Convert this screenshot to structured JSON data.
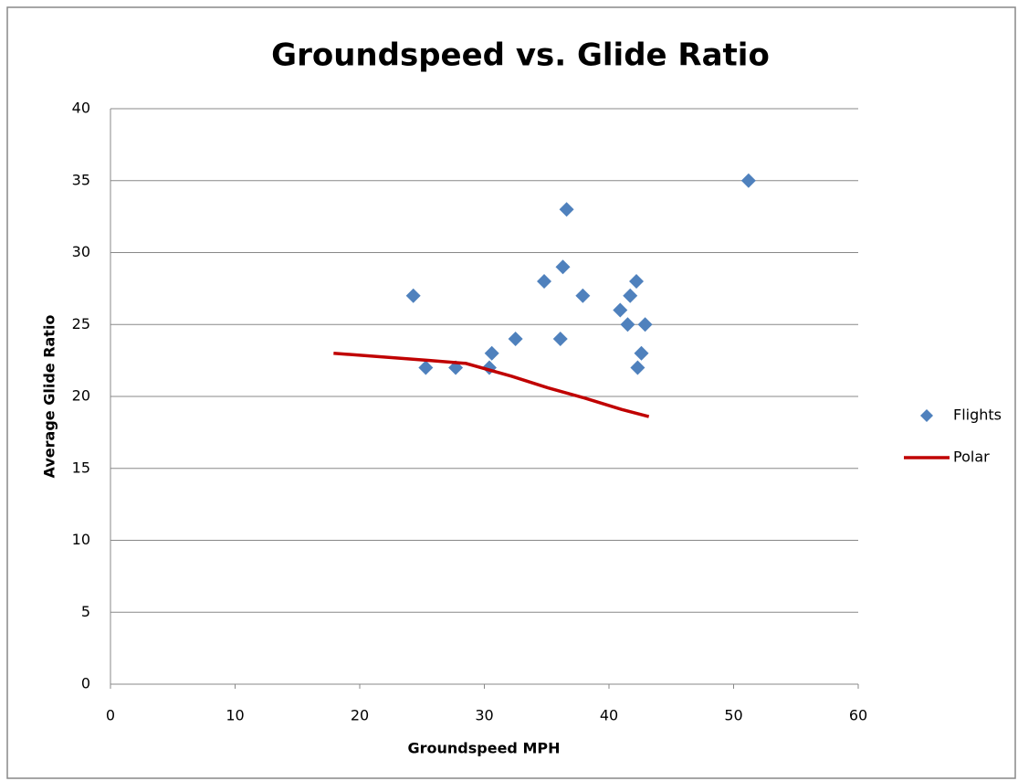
{
  "chart_data": {
    "type": "scatter",
    "title": "Groundspeed vs. Glide Ratio",
    "x_label": "Groundspeed MPH",
    "y_label": "Average Glide Ratio",
    "xlim": [
      0,
      60
    ],
    "xticks": [
      0,
      10,
      20,
      30,
      40,
      50,
      60
    ],
    "ylim": [
      0,
      40
    ],
    "yticks": [
      0,
      5,
      10,
      15,
      20,
      25,
      30,
      35,
      40
    ],
    "grid": true,
    "legend": "right",
    "series": [
      {
        "name": "Flights",
        "color": "#4f81bd",
        "style": "markers",
        "x": [
          24.3,
          25.3,
          27.7,
          30.4,
          30.6,
          32.5,
          34.8,
          36.1,
          36.3,
          36.6,
          37.9,
          40.9,
          41.5,
          41.7,
          42.2,
          42.3,
          42.6,
          42.9,
          51.2
        ],
        "values": [
          27,
          22,
          22,
          22,
          23,
          24,
          28,
          24,
          29,
          33,
          27,
          26,
          25,
          27,
          28,
          22,
          23,
          25,
          35
        ]
      },
      {
        "name": "Polar",
        "color": "#c00000",
        "style": "line",
        "x": [
          17.9,
          25.6,
          28.5,
          32.2,
          35.1,
          38,
          41,
          43.2
        ],
        "values": [
          23.0,
          22.5,
          22.3,
          21.4,
          20.6,
          19.9,
          19.1,
          18.6
        ]
      }
    ]
  }
}
